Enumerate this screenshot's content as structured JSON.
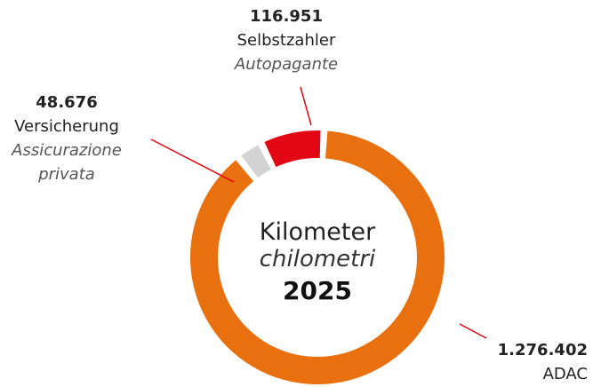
{
  "chart_data": {
    "type": "donut",
    "categories": [
      "ADAC",
      "Versicherung",
      "Selbstzahler"
    ],
    "values": [
      1276402,
      48676,
      116951
    ],
    "value_labels": [
      "1.276.402",
      "48.676",
      "116.951"
    ],
    "colors": [
      "#e8700e",
      "#d3d3d3",
      "#e30613"
    ],
    "translations": {
      "Versicherung": "Assicurazione privata",
      "Selbstzahler": "Autopagante"
    },
    "center_label": {
      "title": "Kilometer",
      "subtitle": "chilometri",
      "year": "2025"
    }
  }
}
